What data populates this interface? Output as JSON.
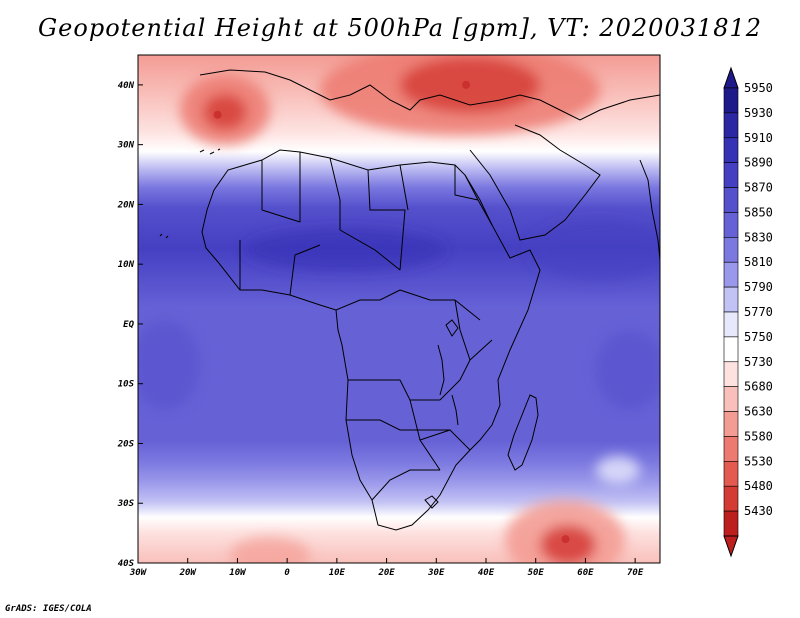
{
  "title": "Geopotential Height at 500hPa [gpm], VT: 2020031812",
  "credit": "GrADS: IGES/COLA",
  "map": {
    "lon_range": [
      -30,
      75
    ],
    "lat_range": [
      -40,
      45
    ],
    "lat_ticks": [
      {
        "value": 40,
        "label": "40N"
      },
      {
        "value": 30,
        "label": "30N"
      },
      {
        "value": 20,
        "label": "20N"
      },
      {
        "value": 10,
        "label": "10N"
      },
      {
        "value": 0,
        "label": "EQ"
      },
      {
        "value": -10,
        "label": "10S"
      },
      {
        "value": -20,
        "label": "20S"
      },
      {
        "value": -30,
        "label": "30S"
      },
      {
        "value": -40,
        "label": "40S"
      }
    ],
    "lon_ticks": [
      {
        "value": -30,
        "label": "30W"
      },
      {
        "value": -20,
        "label": "20W"
      },
      {
        "value": -10,
        "label": "10W"
      },
      {
        "value": 0,
        "label": "0"
      },
      {
        "value": 10,
        "label": "10E"
      },
      {
        "value": 20,
        "label": "20E"
      },
      {
        "value": 30,
        "label": "30E"
      },
      {
        "value": 40,
        "label": "40E"
      },
      {
        "value": 50,
        "label": "50E"
      },
      {
        "value": 60,
        "label": "60E"
      },
      {
        "value": 70,
        "label": "70E"
      }
    ],
    "low_centers": [
      {
        "name": "low-iberia-atlantic",
        "lon": -14,
        "lat": 35
      },
      {
        "name": "low-turkey-caspian",
        "lon": 36,
        "lat": 40
      },
      {
        "name": "low-south-indian-ocean",
        "lon": 56,
        "lat": -36
      }
    ]
  },
  "colorbar": {
    "levels": [
      {
        "label": "5950",
        "color": "#1f1a8a"
      },
      {
        "label": "5930",
        "color": "#2c28a4"
      },
      {
        "label": "5910",
        "color": "#3632b5"
      },
      {
        "label": "5890",
        "color": "#4540c2"
      },
      {
        "label": "5870",
        "color": "#5550cc"
      },
      {
        "label": "5850",
        "color": "#6662d6"
      },
      {
        "label": "5830",
        "color": "#7b78e0"
      },
      {
        "label": "5810",
        "color": "#9a98ea"
      },
      {
        "label": "5790",
        "color": "#c3c2f4"
      },
      {
        "label": "5770",
        "color": "#e8e8fc"
      },
      {
        "label": "5750",
        "color": "#ffffff"
      },
      {
        "label": "5730",
        "color": "#fde2e0"
      },
      {
        "label": "5680",
        "color": "#f9c0bb"
      },
      {
        "label": "5630",
        "color": "#f39c94"
      },
      {
        "label": "5580",
        "color": "#ec7a70"
      },
      {
        "label": "5530",
        "color": "#e35a51"
      },
      {
        "label": "5480",
        "color": "#d53b35"
      },
      {
        "label": "5430",
        "color": "#bd1e1e"
      }
    ]
  }
}
